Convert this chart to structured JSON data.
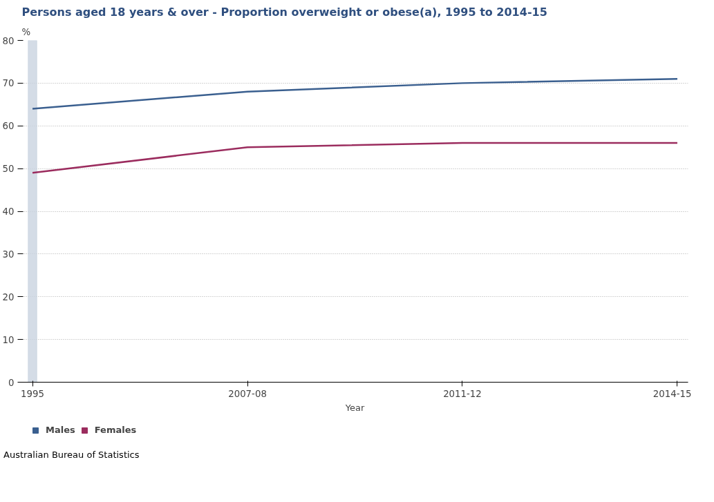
{
  "chart_data": {
    "type": "line",
    "title": "Persons aged 18 years & over - Proportion overweight or obese(a), 1995 to 2014-15",
    "xlabel": "Year",
    "ylabel": "%",
    "categories": [
      "1995",
      "2007-08",
      "2011-12",
      "2014-15"
    ],
    "series": [
      {
        "name": "Males",
        "color": "#3a5f8f",
        "values": [
          64,
          68,
          70,
          71
        ]
      },
      {
        "name": "Females",
        "color": "#9b2c5e",
        "values": [
          49,
          55,
          56,
          56
        ]
      }
    ],
    "ylim": [
      0,
      80
    ],
    "yticks": [
      0,
      10,
      20,
      30,
      40,
      50,
      60,
      70,
      80
    ],
    "grid": "y",
    "legend": "bottom",
    "marker": "none",
    "line_style": "solid",
    "bands": [
      {
        "axis": "x",
        "from": "1995",
        "to": "1995",
        "color": "#c9d3e0"
      }
    ],
    "annotations": [
      "Australian Bureau of Statistics"
    ]
  }
}
